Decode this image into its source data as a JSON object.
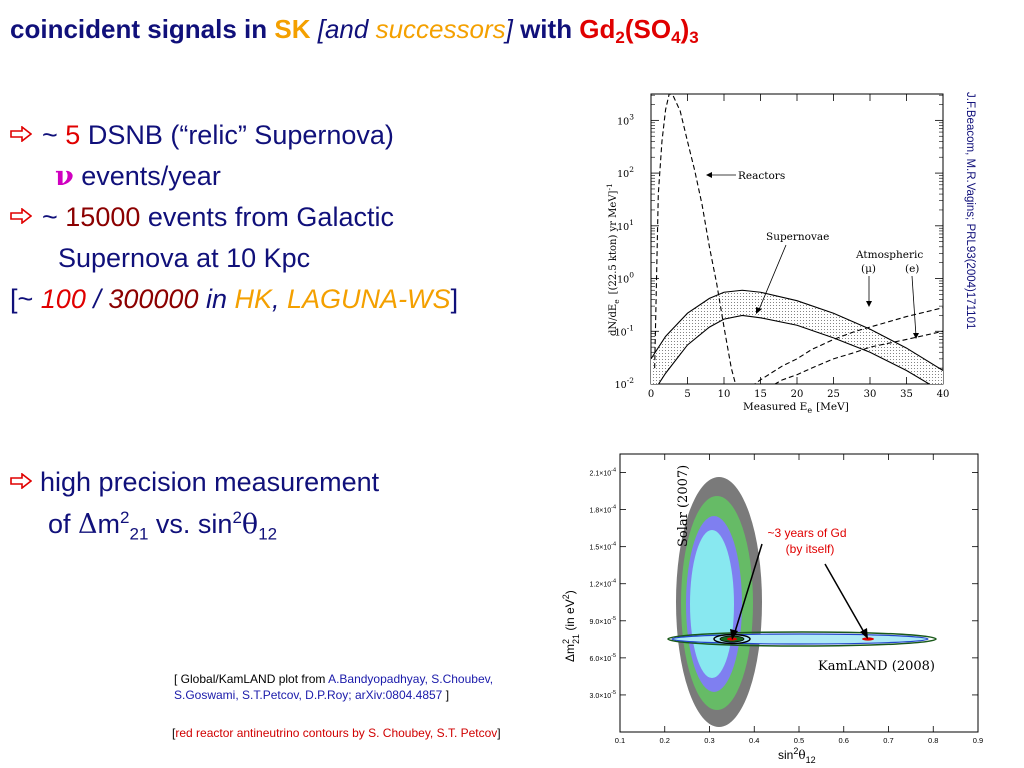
{
  "title": {
    "part1": "coincident signals in ",
    "sk": "SK",
    "br_open": " [",
    "and": "and ",
    "successors": "successors",
    "br_close": "]",
    "with": " with ",
    "gd": "Gd",
    "gd_sub": "2",
    "so": "(SO",
    "so_sub": "4",
    "close": ")",
    "close_sub": "3"
  },
  "bullets": {
    "b1_prefix": "~ ",
    "b1_num": "5",
    "b1_text": " DSNB (“relic” Supernova)",
    "b1_nu": "ν",
    "b1_line2": " events/year",
    "b2_prefix": "~ ",
    "b2_num": "15000",
    "b2_text": " events from Galactic",
    "b2_line2": "Supernova at 10 Kpc",
    "b3_open": "[~ ",
    "b3_n1": "100",
    "b3_slash": " / ",
    "b3_n2": "300000",
    "b3_in": " in ",
    "b3_hk": "HK",
    "b3_comma": ", ",
    "b3_laguna": "LAGUNA-WS",
    "b3_close": "]",
    "b4_text": "high precision measurement",
    "b4_of": "of ",
    "b4_delta": "Δ",
    "b4_m": "m",
    "b4_sup2": "2",
    "b4_sub21": "21",
    "b4_vs": " vs. sin",
    "b4_sup2b": "2",
    "b4_theta": "θ",
    "b4_sub12": "12"
  },
  "vertical_ref": "J.F.Beacom, M.R.Vagins; PRL93(2004)171101",
  "refs": {
    "r1_a": "[ Global/KamLAND plot from ",
    "r1_b": "A.Bandyopadhyay, S.Choubev,",
    "r2_a": " S.Goswami,  S.T.Petcov,  D.P.Roy;  arXiv:0804.4857",
    "r2_b": " ]",
    "r3_open": "[",
    "r3_red": "red reactor antineutrino contours by S. Choubey, S.T. Petcov",
    "r3_close": "]"
  },
  "colors": {
    "navy": "#10107a",
    "orange": "#f4a000",
    "red": "#e00000",
    "dark_red": "#8b0000",
    "magenta": "#d000c0"
  },
  "chart_data": [
    {
      "type": "line",
      "xlabel": "Measured E",
      "xlabel_sub": "e",
      "xlabel_unit": "[MeV]",
      "ylabel": "dN/dE",
      "ylabel_sub": "e",
      "ylabel_unit": "[(22.5 kton) yr MeV]",
      "ylabel_sup": "-1",
      "x_ticks": [
        "0",
        "5",
        "10",
        "15",
        "20",
        "25",
        "30",
        "35",
        "40"
      ],
      "y_ticks_base": [
        "10",
        "10",
        "10",
        "10",
        "10",
        "10"
      ],
      "y_ticks_exp": [
        "-2",
        "-1",
        "0",
        "1",
        "2",
        "3"
      ],
      "xlim": [
        0,
        40
      ],
      "ylim_log10": [
        -2,
        3.5
      ],
      "annotations": {
        "reactors": "Reactors",
        "supernovae": "Supernovae",
        "atmospheric": "Atmospheric",
        "mu": "(μ)",
        "e": "(e)"
      },
      "series": [
        {
          "x": [
            0.5,
            1,
            1.5,
            2,
            2.5,
            3,
            4,
            5,
            6,
            7,
            8,
            9,
            10,
            11,
            12
          ],
          "y": [
            0.02,
            40,
            400,
            1600,
            3200,
            3000,
            1500,
            400,
            110,
            25,
            4,
            0.8,
            0.12,
            0.02,
            0.006
          ]
        },
        {
          "x": [
            0,
            2,
            5,
            8,
            10,
            12.5,
            15,
            20,
            25,
            30,
            35,
            40
          ],
          "y": [
            0.03,
            0.08,
            0.22,
            0.42,
            0.55,
            0.6,
            0.55,
            0.38,
            0.22,
            0.11,
            0.048,
            0.018
          ]
        },
        {
          "x": [
            0,
            2,
            5,
            8,
            10,
            12.5,
            15,
            20,
            25,
            30,
            35,
            40
          ],
          "y": [
            0.006,
            0.016,
            0.055,
            0.12,
            0.17,
            0.2,
            0.18,
            0.13,
            0.075,
            0.04,
            0.018,
            0.007
          ]
        },
        {
          "x": [
            12,
            15,
            18,
            20,
            22,
            25,
            28,
            30,
            35,
            40
          ],
          "y": [
            0.006,
            0.012,
            0.022,
            0.03,
            0.045,
            0.07,
            0.1,
            0.12,
            0.19,
            0.28
          ]
        },
        {
          "x": [
            15,
            18,
            20,
            22,
            25,
            28,
            30,
            35,
            40
          ],
          "y": [
            0.007,
            0.012,
            0.015,
            0.02,
            0.03,
            0.04,
            0.05,
            0.07,
            0.1
          ]
        }
      ]
    },
    {
      "type": "scatter",
      "xlabel": "sin",
      "xlabel_sup": "2",
      "xlabel_theta": "θ",
      "xlabel_sub": "12",
      "ylabel": "Δm",
      "ylabel_sup": "2",
      "ylabel_sub": "21",
      "ylabel_unit": " (in eV",
      "ylabel_unit_sup": "2",
      "ylabel_close": ")",
      "x_ticks": [
        "0.1",
        "0.2",
        "0.3",
        "0.4",
        "0.5",
        "0.6",
        "0.7",
        "0.8",
        "0.9"
      ],
      "y_ticks_mant": [
        "3.0×10",
        "6.0×10",
        "9.0×10",
        "1.2×10",
        "1.5×10",
        "1.8×10",
        "2.1×10"
      ],
      "y_ticks_exp": [
        "-5",
        "-5",
        "-5",
        "-4",
        "-4",
        "-4",
        "-4"
      ],
      "xlim": [
        0.1,
        0.9
      ],
      "ylim": [
        0.0,
        0.000225
      ],
      "solar_label": "Solar (2007)",
      "kamland_label": "KamLAND (2008)",
      "gd_label_line1": "~3 years of Gd",
      "gd_label_line2": "(by itself)",
      "best_fit": [
        [
          0.33,
          7.85e-05
        ],
        [
          0.65,
          7.85e-05
        ]
      ],
      "solar_center": [
        0.33,
        0.0001
      ],
      "kamland_center": [
        0.5,
        7.85e-05
      ]
    }
  ]
}
